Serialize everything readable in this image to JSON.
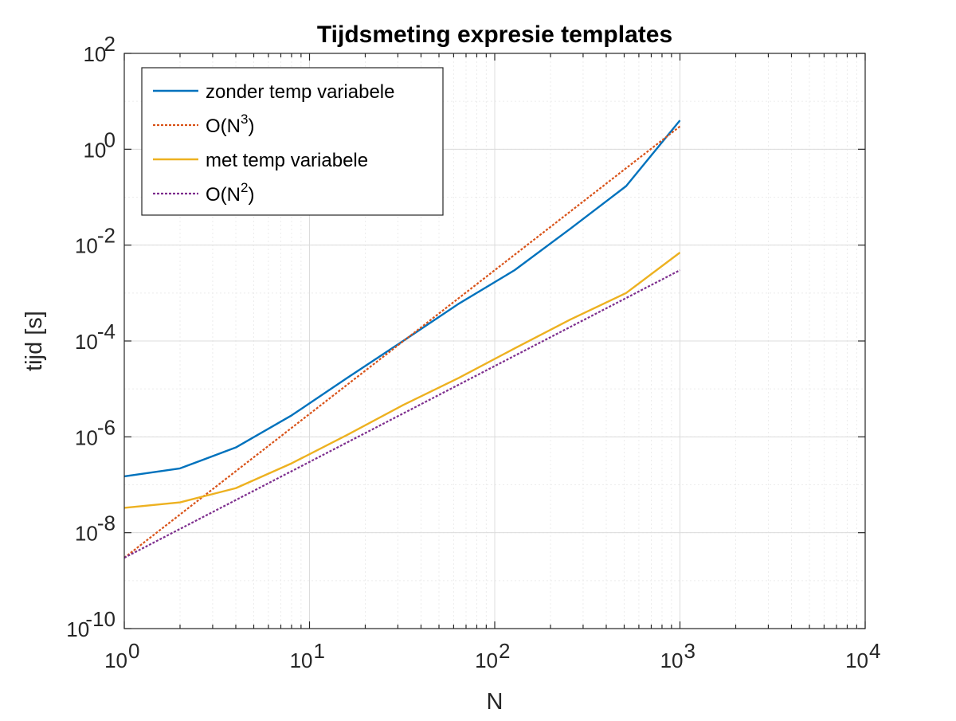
{
  "chart_data": {
    "type": "line",
    "title": "Tijdsmeting expresie templates",
    "xlabel": "N",
    "ylabel": "tijd [s]",
    "xscale": "log",
    "yscale": "log",
    "xlim": [
      1,
      10000
    ],
    "ylim": [
      1e-10,
      100
    ],
    "grid": true,
    "legend_location": "top-left",
    "x_ticks": [
      {
        "value": 1,
        "base": "10",
        "exp": "0"
      },
      {
        "value": 10,
        "base": "10",
        "exp": "1"
      },
      {
        "value": 100,
        "base": "10",
        "exp": "2"
      },
      {
        "value": 1000,
        "base": "10",
        "exp": "3"
      },
      {
        "value": 10000,
        "base": "10",
        "exp": "4"
      }
    ],
    "y_ticks": [
      {
        "value": 1e-10,
        "base": "10",
        "exp": "-10"
      },
      {
        "value": 1e-08,
        "base": "10",
        "exp": "-8"
      },
      {
        "value": 1e-06,
        "base": "10",
        "exp": "-6"
      },
      {
        "value": 0.0001,
        "base": "10",
        "exp": "-4"
      },
      {
        "value": 0.01,
        "base": "10",
        "exp": "-2"
      },
      {
        "value": 1,
        "base": "10",
        "exp": "0"
      },
      {
        "value": 100,
        "base": "10",
        "exp": "2"
      }
    ],
    "series": [
      {
        "name": "zonder temp variabele",
        "color": "#0072BD",
        "style": "solid",
        "x": [
          1,
          2,
          4,
          8,
          16,
          32,
          64,
          128,
          256,
          512,
          1000
        ],
        "y": [
          1.5e-07,
          2.2e-07,
          6e-07,
          2.8e-06,
          1.7e-05,
          0.0001,
          0.0006,
          0.003,
          0.022,
          0.17,
          4.0
        ]
      },
      {
        "name": "O(N",
        "name_sup": "3",
        "name_suffix": ")",
        "color": "#D95319",
        "style": "dotted",
        "x": [
          1,
          1000
        ],
        "y": [
          3e-09,
          3.0
        ]
      },
      {
        "name": "met temp variabele",
        "color": "#EDB120",
        "style": "solid",
        "x": [
          1,
          2,
          4,
          8,
          16,
          32,
          64,
          128,
          256,
          512,
          1000
        ],
        "y": [
          3.3e-08,
          4.3e-08,
          8.5e-08,
          2.8e-07,
          1.1e-06,
          4.6e-06,
          1.7e-05,
          7e-05,
          0.00028,
          0.001,
          0.007
        ]
      },
      {
        "name": "O(N",
        "name_sup": "2",
        "name_suffix": ")",
        "color": "#7E2F8E",
        "style": "dotted",
        "x": [
          1,
          1000
        ],
        "y": [
          3e-09,
          0.003
        ]
      }
    ]
  }
}
